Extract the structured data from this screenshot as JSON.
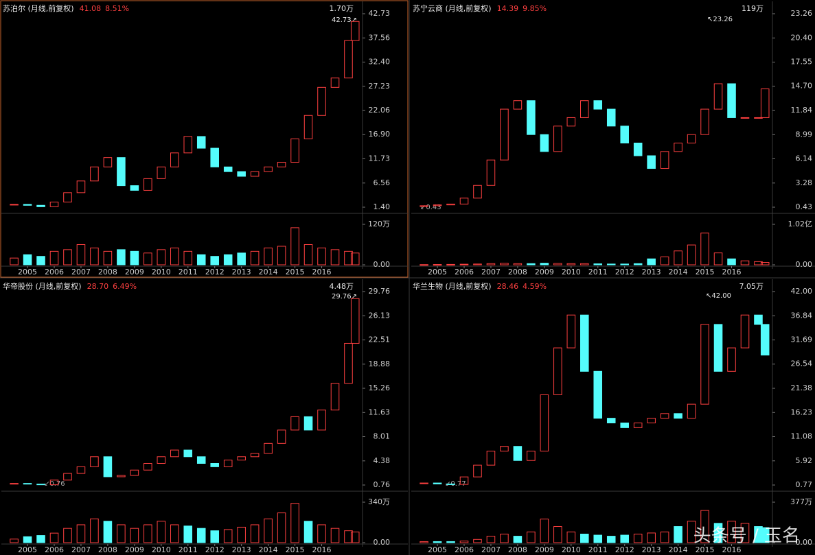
{
  "chart_data": [
    {
      "type": "candlestick",
      "title": "苏泊尔 (月线,前复权)",
      "price": "41.08",
      "change": "8.51%",
      "volume_label": "1.70万",
      "max_label": "42.73↗",
      "x": [
        2004.5,
        2005,
        2005.5,
        2006,
        2006.5,
        2007,
        2007.5,
        2008,
        2008.5,
        2009,
        2009.5,
        2010,
        2010.5,
        2011,
        2011.5,
        2012,
        2012.5,
        2013,
        2013.5,
        2014,
        2014.5,
        2015,
        2015.5,
        2016,
        2016.5,
        2017,
        2017.25
      ],
      "close": [
        2.0,
        1.8,
        1.5,
        2.5,
        4.5,
        7,
        10,
        12,
        6,
        5,
        7.5,
        10,
        13,
        16.5,
        14,
        10,
        9,
        8,
        9,
        10,
        11,
        16,
        21,
        27,
        29,
        37,
        41.08
      ],
      "volume": [
        20,
        30,
        25,
        40,
        45,
        60,
        50,
        40,
        45,
        40,
        35,
        45,
        50,
        40,
        30,
        25,
        30,
        35,
        40,
        50,
        55,
        110,
        60,
        50,
        45,
        40,
        35
      ],
      "xlim": [
        2004.1,
        2017.45
      ],
      "xticks": [
        2005,
        2006,
        2007,
        2008,
        2009,
        2010,
        2011,
        2012,
        2013,
        2014,
        2015,
        2016
      ],
      "ylim": [
        1.4,
        42.73
      ],
      "yticks": [
        {
          "value": 1.4,
          "label": "1.40"
        },
        {
          "value": 6.56,
          "label": "6.56"
        },
        {
          "value": 11.73,
          "label": "11.73"
        },
        {
          "value": 16.9,
          "label": "16.90"
        },
        {
          "value": 22.06,
          "label": "22.06"
        },
        {
          "value": 27.23,
          "label": "27.23"
        },
        {
          "value": 32.4,
          "label": "32.40"
        },
        {
          "value": 37.56,
          "label": "37.56"
        },
        {
          "value": 42.73,
          "label": "42.73"
        }
      ],
      "vol_ylim": [
        0,
        120
      ],
      "vol_yticks": [
        {
          "value": 0,
          "label": "0.00"
        },
        {
          "value": 120,
          "label": "120万"
        }
      ],
      "up_color": "#ff4040",
      "down_color": "#54fcfc",
      "selected": true
    },
    {
      "type": "candlestick",
      "title": "苏宁云商 (月线,前复权)",
      "price": "14.39",
      "change": "9.85%",
      "volume_label": "119万",
      "max_label": "↖23.26",
      "min_label": "↙0.43",
      "x": [
        2004.5,
        2005,
        2005.5,
        2006,
        2006.5,
        2007,
        2007.5,
        2008,
        2008.5,
        2009,
        2009.5,
        2010,
        2010.5,
        2011,
        2011.5,
        2012,
        2012.5,
        2013,
        2013.5,
        2014,
        2014.5,
        2015,
        2015.5,
        2016,
        2016.5,
        2017,
        2017.25
      ],
      "close": [
        0.6,
        0.7,
        0.8,
        1.5,
        3,
        6,
        12,
        13,
        9,
        7,
        10,
        11,
        13,
        12,
        10,
        8,
        6.5,
        5,
        7,
        8,
        9,
        12,
        15,
        11,
        11,
        11,
        14.39
      ],
      "volume": [
        50,
        80,
        100,
        150,
        200,
        300,
        400,
        300,
        300,
        400,
        350,
        300,
        300,
        250,
        200,
        200,
        300,
        1500,
        2000,
        3500,
        5000,
        8000,
        3000,
        1500,
        1000,
        800,
        600
      ],
      "xlim": [
        2004.1,
        2017.45
      ],
      "xticks": [
        2005,
        2006,
        2007,
        2008,
        2009,
        2010,
        2011,
        2012,
        2013,
        2014,
        2015,
        2016
      ],
      "ylim": [
        0.43,
        23.26
      ],
      "yticks": [
        {
          "value": 0.43,
          "label": "0.43"
        },
        {
          "value": 3.28,
          "label": "3.28"
        },
        {
          "value": 6.14,
          "label": "6.14"
        },
        {
          "value": 8.99,
          "label": "8.99"
        },
        {
          "value": 11.84,
          "label": "11.84"
        },
        {
          "value": 14.7,
          "label": "14.70"
        },
        {
          "value": 17.55,
          "label": "17.55"
        },
        {
          "value": 20.4,
          "label": "20.40"
        },
        {
          "value": 23.26,
          "label": "23.26"
        }
      ],
      "vol_ylim": [
        0,
        10200
      ],
      "vol_yticks": [
        {
          "value": 0,
          "label": "0.00"
        },
        {
          "value": 10200,
          "label": "1.02亿"
        }
      ],
      "up_color": "#ff4040",
      "down_color": "#54fcfc",
      "selected": false
    },
    {
      "type": "candlestick",
      "title": "华帝股份 (月线,前复权)",
      "price": "28.70",
      "change": "6.49%",
      "volume_label": "4.48万",
      "max_label": "29.76↗",
      "min_label": "↙0.76",
      "x": [
        2004.5,
        2005,
        2005.5,
        2006,
        2006.5,
        2007,
        2007.5,
        2008,
        2008.5,
        2009,
        2009.5,
        2010,
        2010.5,
        2011,
        2011.5,
        2012,
        2012.5,
        2013,
        2013.5,
        2014,
        2014.5,
        2015,
        2015.5,
        2016,
        2016.5,
        2017,
        2017.25
      ],
      "close": [
        1.0,
        0.9,
        0.8,
        1.5,
        2.5,
        3.5,
        5,
        2,
        2.2,
        3,
        4,
        5,
        6,
        5,
        4,
        3.5,
        4.5,
        5,
        5.5,
        7,
        9,
        11,
        9,
        12,
        16,
        22,
        28.7
      ],
      "volume": [
        30,
        50,
        60,
        80,
        120,
        150,
        200,
        180,
        150,
        120,
        150,
        180,
        150,
        140,
        120,
        100,
        110,
        130,
        150,
        200,
        250,
        330,
        180,
        150,
        120,
        100,
        90
      ],
      "xlim": [
        2004.1,
        2017.45
      ],
      "xticks": [
        2005,
        2006,
        2007,
        2008,
        2009,
        2010,
        2011,
        2012,
        2013,
        2014,
        2015,
        2016
      ],
      "ylim": [
        0.76,
        29.76
      ],
      "yticks": [
        {
          "value": 0.76,
          "label": "0.76"
        },
        {
          "value": 4.38,
          "label": "4.38"
        },
        {
          "value": 8.01,
          "label": "8.01"
        },
        {
          "value": 11.63,
          "label": "11.63"
        },
        {
          "value": 15.26,
          "label": "15.26"
        },
        {
          "value": 18.88,
          "label": "18.88"
        },
        {
          "value": 22.51,
          "label": "22.51"
        },
        {
          "value": 26.13,
          "label": "26.13"
        },
        {
          "value": 29.76,
          "label": "29.76"
        }
      ],
      "vol_ylim": [
        0,
        340
      ],
      "vol_yticks": [
        {
          "value": 0,
          "label": "0.00"
        },
        {
          "value": 340,
          "label": "340万"
        }
      ],
      "up_color": "#ff4040",
      "down_color": "#54fcfc",
      "selected": false
    },
    {
      "type": "candlestick",
      "title": "华兰生物 (月线,前复权)",
      "price": "28.46",
      "change": "4.59%",
      "volume_label": "7.05万",
      "max_label": "↖42.00",
      "min_label": "↙0.77",
      "x": [
        2004.5,
        2005,
        2005.5,
        2006,
        2006.5,
        2007,
        2007.5,
        2008,
        2008.5,
        2009,
        2009.5,
        2010,
        2010.5,
        2011,
        2011.5,
        2012,
        2012.5,
        2013,
        2013.5,
        2014,
        2014.5,
        2015,
        2015.5,
        2016,
        2016.5,
        2017,
        2017.25
      ],
      "close": [
        1.2,
        1.0,
        0.9,
        2.5,
        5,
        8,
        9,
        6,
        8,
        20,
        30,
        37,
        25,
        15,
        14,
        13,
        14,
        15,
        16,
        15,
        18,
        35,
        25,
        30,
        37,
        35,
        28.46
      ],
      "volume": [
        10,
        10,
        10,
        15,
        30,
        60,
        80,
        60,
        100,
        220,
        150,
        100,
        80,
        70,
        60,
        70,
        80,
        90,
        100,
        150,
        200,
        300,
        180,
        200,
        180,
        150,
        140
      ],
      "xlim": [
        2004.1,
        2017.45
      ],
      "xticks": [
        2005,
        2006,
        2007,
        2008,
        2009,
        2010,
        2011,
        2012,
        2013,
        2014,
        2015,
        2016
      ],
      "ylim": [
        0.77,
        42.0
      ],
      "yticks": [
        {
          "value": 0.77,
          "label": "0.77"
        },
        {
          "value": 5.92,
          "label": "5.92"
        },
        {
          "value": 11.08,
          "label": "11.08"
        },
        {
          "value": 16.23,
          "label": "16.23"
        },
        {
          "value": 21.38,
          "label": "21.38"
        },
        {
          "value": 26.54,
          "label": "26.54"
        },
        {
          "value": 31.69,
          "label": "31.69"
        },
        {
          "value": 36.84,
          "label": "36.84"
        },
        {
          "value": 42.0,
          "label": "42.00"
        }
      ],
      "vol_ylim": [
        0,
        377
      ],
      "vol_yticks": [
        {
          "value": 0,
          "label": "0.00"
        },
        {
          "value": 377,
          "label": "377万"
        }
      ],
      "up_color": "#ff4040",
      "down_color": "#54fcfc",
      "selected": false
    }
  ],
  "watermark": "头条号 / 玉名"
}
